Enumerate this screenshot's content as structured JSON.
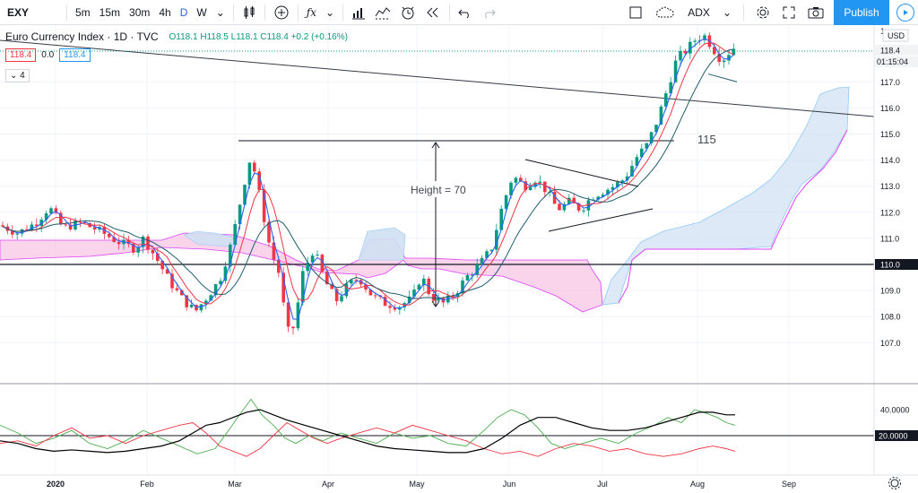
{
  "toolbar": {
    "symbol": "EXY",
    "timeframes": [
      "5m",
      "15m",
      "30m",
      "4h",
      "D",
      "W"
    ],
    "active_timeframe": "D",
    "compare_label": "ADX",
    "publish_label": "Publish"
  },
  "legend": {
    "title": "Euro Currency Index · 1D · TVC",
    "open": "O118.1",
    "high": "H118.5",
    "low": "L118.1",
    "close": "C118.4",
    "change": "+0.2 (+0.16%)",
    "bid": "118.4",
    "spread": "0.0",
    "ask": "118.4",
    "indicator_count": "4"
  },
  "price_axis": {
    "currency": "USD",
    "ticks": [
      "117.0",
      "116.0",
      "115.0",
      "114.0",
      "113.0",
      "112.0",
      "111.0",
      "110.0",
      "109.0",
      "108.0",
      "107.0"
    ],
    "last_price": "118.4",
    "countdown": "01:15:04",
    "marked_level": "110.0"
  },
  "indicator_axis": {
    "ticks": [
      "40.0000"
    ],
    "marked_level": "20.0000"
  },
  "time_axis": [
    "2020",
    "Feb",
    "Mar",
    "Apr",
    "May",
    "Jun",
    "Jul",
    "Aug",
    "Sep"
  ],
  "annotations": {
    "height_label": "Height = 70",
    "target_label": "115"
  },
  "colors": {
    "up": "#089981",
    "down": "#f23645",
    "ma_fast": "#2962ff",
    "ma_mid": "#f23645",
    "ma_slow": "#1e5c6e",
    "cloud_bull": "#cfe0f3",
    "cloud_bear": "#f7c6e4",
    "adx": "#000000",
    "di_plus": "#4caf50",
    "di_minus": "#f23645"
  },
  "chart_data": {
    "type": "candlestick",
    "title": "Euro Currency Index · 1D · TVC",
    "ylim": [
      106.3,
      119.2
    ],
    "levels": {
      "horizontal_support": 110.0,
      "target": 115.0
    },
    "series": [
      {
        "name": "price_close",
        "x": [
          "2020-01-02",
          "2020-01-15",
          "2020-02-01",
          "2020-02-10",
          "2020-02-20",
          "2020-03-02",
          "2020-03-09",
          "2020-03-19",
          "2020-04-01",
          "2020-04-15",
          "2020-05-01",
          "2020-05-15",
          "2020-06-01",
          "2020-06-10",
          "2020-06-20",
          "2020-07-01",
          "2020-07-15",
          "2020-07-25",
          "2020-08-01",
          "2020-08-12"
        ],
        "values": [
          111.4,
          111.8,
          111.0,
          110.2,
          108.3,
          109.6,
          113.8,
          107.5,
          109.6,
          108.9,
          108.5,
          108.9,
          111.5,
          113.0,
          112.0,
          112.9,
          114.2,
          117.4,
          118.6,
          118.4
        ]
      }
    ],
    "indicator": {
      "name": "ADX",
      "levels": [
        20,
        40
      ]
    }
  }
}
